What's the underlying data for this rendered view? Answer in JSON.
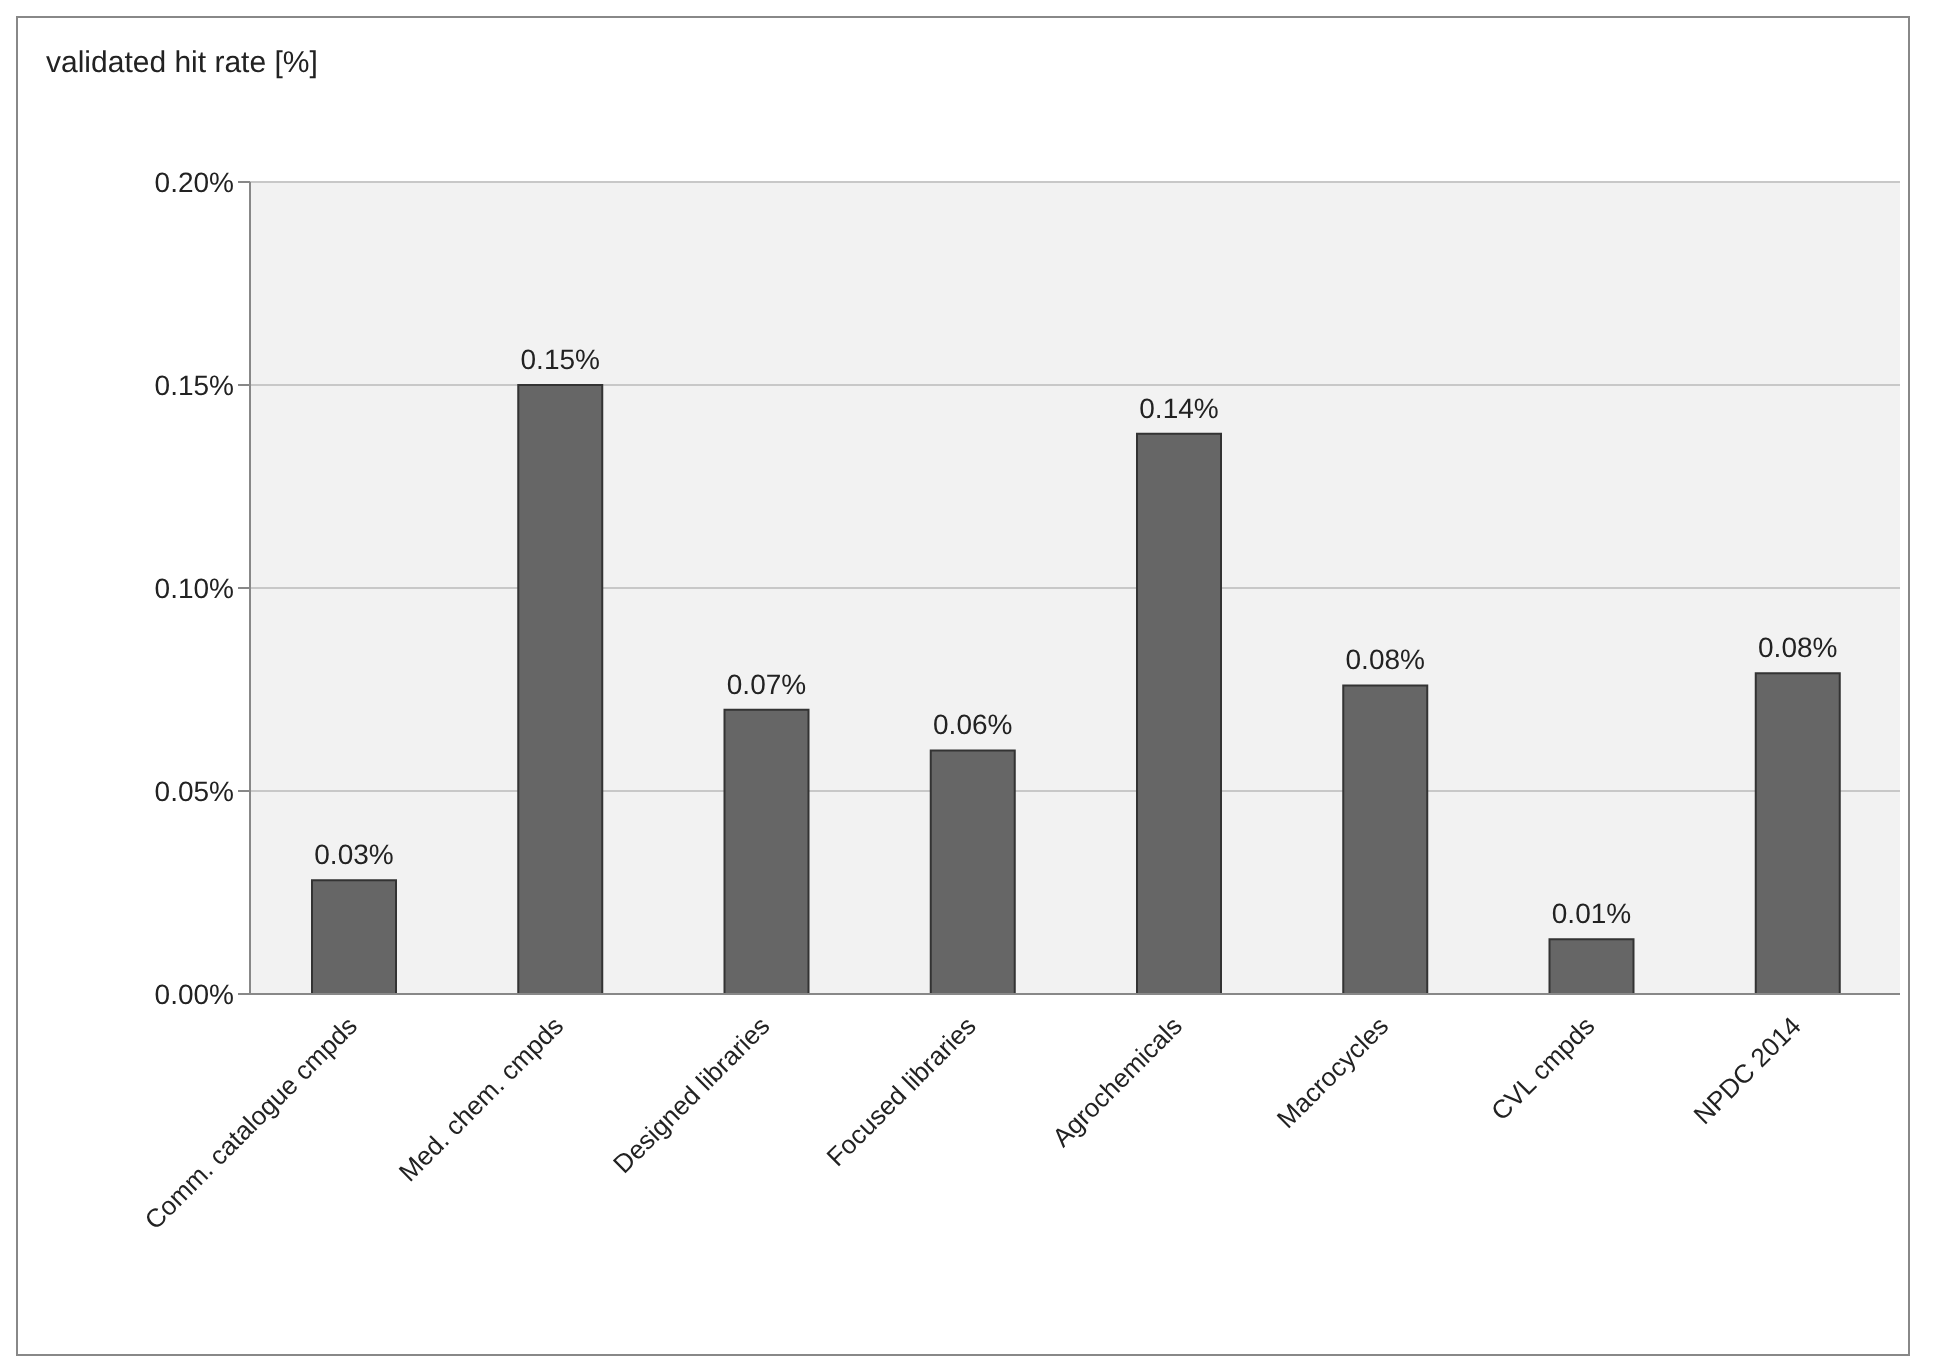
{
  "chart_data": {
    "type": "bar",
    "ylabel": "validated hit rate [%]",
    "categories": [
      "Comm. catalogue cmpds",
      "Med. chem. cmpds",
      "Designed libraries",
      "Focused libraries",
      "Agrochemicals",
      "Macrocycles",
      "CVL cmpds",
      "NPDC 2014"
    ],
    "values": [
      0.028,
      0.15,
      0.07,
      0.06,
      0.138,
      0.076,
      0.0135,
      0.079
    ],
    "value_labels": [
      "0.03%",
      "0.15%",
      "0.07%",
      "0.06%",
      "0.14%",
      "0.08%",
      "0.01%",
      "0.08%"
    ],
    "color": "#666666",
    "ylim": [
      0,
      0.2
    ],
    "yticks": [
      {
        "value": 0,
        "label": "0.00%"
      },
      {
        "value": 0.05,
        "label": "0.05%"
      },
      {
        "value": 0.1,
        "label": "0.10%"
      },
      {
        "value": 0.15,
        "label": "0.15%"
      },
      {
        "value": 0.2,
        "label": "0.20%"
      }
    ],
    "grid": "y",
    "legend": false
  }
}
